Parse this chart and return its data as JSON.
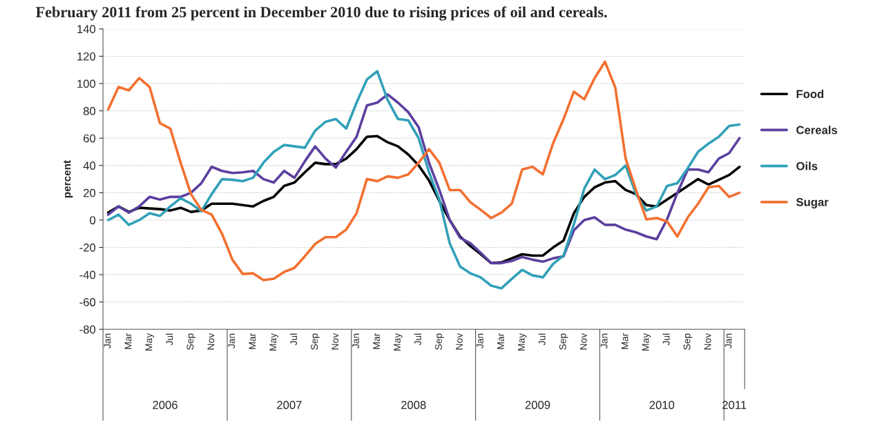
{
  "chart_data": {
    "type": "line",
    "title": "February 2011 from 25 percent in December 2010 due to rising prices of oil and cereals.",
    "ylabel": "percent",
    "categories": [
      "Jan",
      null,
      "Mar",
      null,
      "May",
      null,
      "Jul",
      null,
      "Sep",
      null,
      "Nov",
      null,
      "Jan",
      null,
      "Mar",
      null,
      "May",
      null,
      "Jul",
      null,
      "Sep",
      null,
      "Nov",
      null,
      "Jan",
      null,
      "Mar",
      null,
      "May",
      null,
      "Jul",
      null,
      "Sep",
      null,
      "Nov",
      null,
      "Jan",
      null,
      "Mar",
      null,
      "May",
      null,
      "Jul",
      null,
      "Sep",
      null,
      "Nov",
      null,
      "Jan",
      null,
      "Mar",
      null,
      "May",
      null,
      "Jul",
      null,
      "Sep",
      null,
      "Nov",
      null,
      "Jan",
      null
    ],
    "annotations": [
      "2006",
      "2007",
      "2008",
      "2009",
      "2010",
      "2011"
    ],
    "series": [
      {
        "name": "Food",
        "color": "#000000",
        "values": [
          5.5,
          10,
          6,
          9,
          8.5,
          8,
          7,
          9,
          6,
          7,
          12,
          12,
          12,
          11,
          10,
          14,
          17,
          25,
          27.5,
          35,
          42,
          41,
          41,
          45,
          52,
          61,
          61.5,
          57,
          54,
          48,
          40,
          29,
          14,
          0,
          -12,
          -19,
          -25,
          -31.5,
          -31,
          -28,
          -25,
          -26,
          -26,
          -20,
          -15,
          5,
          17,
          24,
          27.5,
          28.5,
          22,
          19,
          11,
          10,
          15,
          20,
          25,
          30,
          26,
          29.5,
          33,
          39
        ]
      },
      {
        "name": "Cereals",
        "color": "#5b3fa0",
        "values": [
          4,
          10,
          5.5,
          10,
          17,
          15,
          17,
          17,
          20,
          27,
          39,
          36,
          34.5,
          35,
          36,
          30,
          27.5,
          36,
          31,
          43,
          54,
          45,
          38.5,
          50,
          61,
          84,
          86,
          92,
          86,
          79,
          68,
          42,
          22,
          0,
          -13,
          -17,
          -24,
          -31.5,
          -31.5,
          -30,
          -27,
          -29,
          -30.5,
          -28,
          -26.5,
          -7.5,
          0,
          2,
          -3.5,
          -3.5,
          -7,
          -9,
          -12,
          -14,
          0.5,
          20,
          37,
          37,
          35,
          45,
          49,
          60
        ]
      },
      {
        "name": "Oils",
        "color": "#31a0b8",
        "values": [
          0,
          4,
          -3.5,
          0,
          5,
          3,
          10,
          16,
          12,
          6.5,
          19,
          30,
          29.5,
          28.5,
          31,
          42,
          50,
          55,
          54,
          53,
          65.5,
          72,
          74,
          67,
          86,
          103,
          109,
          88,
          74,
          73,
          60,
          35,
          15,
          -17,
          -34,
          -39,
          -42,
          -48,
          -50,
          -43,
          -36.5,
          -40.5,
          -42,
          -32,
          -26,
          -3,
          23,
          37,
          30,
          33,
          40,
          19,
          7,
          10,
          25,
          27,
          38,
          50,
          56,
          61,
          69,
          70
        ]
      },
      {
        "name": "Sugar",
        "color": "#f37030",
        "values": [
          81,
          97.5,
          95,
          104,
          97.5,
          71,
          67,
          42,
          19,
          7.5,
          4,
          -10,
          -29,
          -39.5,
          -39,
          -44,
          -43,
          -38,
          -35,
          -26.5,
          -17.5,
          -12.5,
          -12.5,
          -7,
          5,
          30,
          28.5,
          32,
          31,
          33.5,
          42,
          52,
          42,
          22,
          22,
          13,
          7.5,
          1.5,
          5.5,
          12,
          37,
          39,
          33.5,
          56.5,
          74,
          94,
          88.5,
          104,
          116,
          97,
          45,
          22,
          0.5,
          1.5,
          -1,
          -12,
          2,
          12,
          24,
          25,
          17,
          20
        ]
      }
    ],
    "ylim": [
      -80,
      140
    ],
    "yticks": [
      -80,
      -60,
      -40,
      -20,
      0,
      20,
      40,
      60,
      80,
      100,
      120,
      140
    ],
    "grid": "y",
    "legend": "right",
    "marker": "none",
    "line_style": "solid"
  }
}
